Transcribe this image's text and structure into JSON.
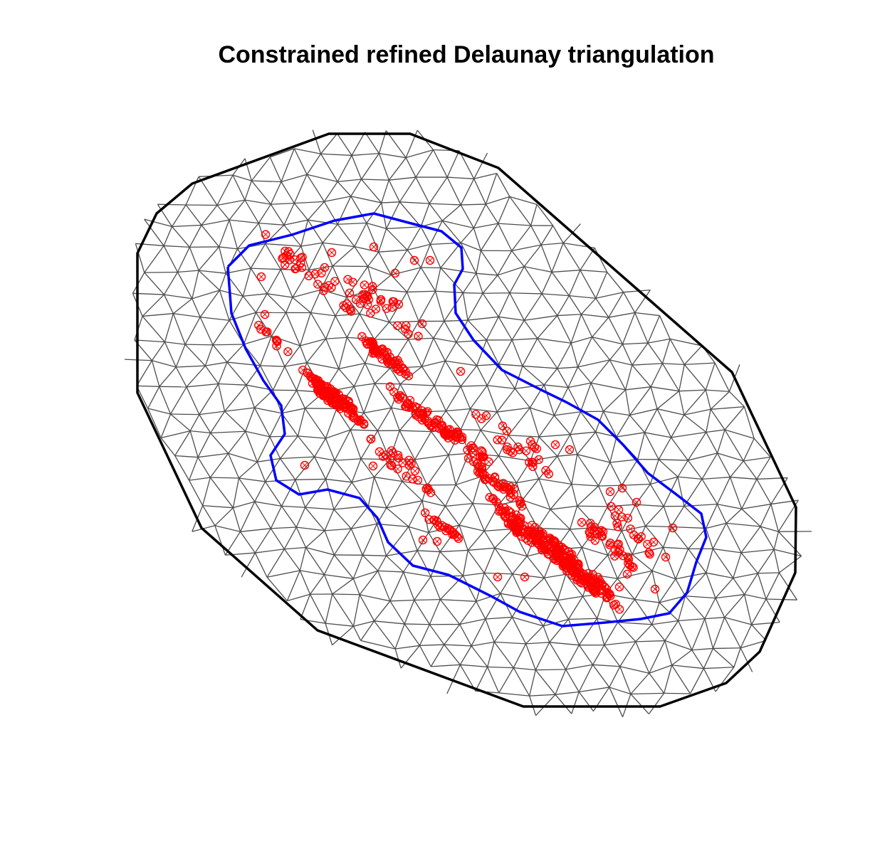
{
  "title": "Constrained refined Delaunay triangulation",
  "colors": {
    "mesh_edges": "#4d4d4d",
    "outer_boundary": "#000000",
    "inner_boundary": "#0000ff",
    "observation_points": "#ff0000",
    "background": "#ffffff"
  },
  "legend": null
}
